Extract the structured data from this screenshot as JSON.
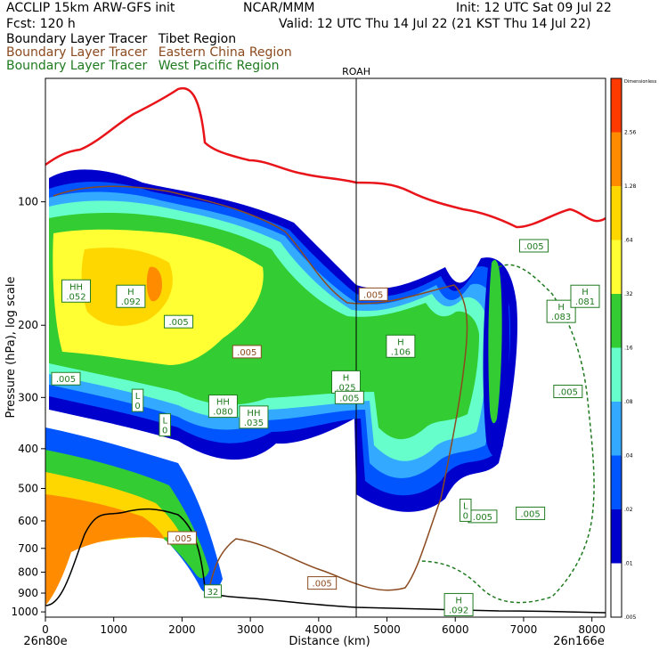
{
  "header": {
    "model": "ACCLIP 15km ARW-GFS init",
    "org": "NCAR/MMM",
    "init": "Init: 12 UTC Sat 09 Jul 22",
    "fcst": "Fcst:  120 h",
    "valid": "Valid: 12 UTC Thu 14 Jul 22 (21 KST Thu 14 Jul 22)"
  },
  "legend_lines": [
    {
      "label": "Boundary Layer Tracer",
      "region": "Tibet Region",
      "color": "#000000"
    },
    {
      "label": "Boundary Layer Tracer",
      "region": "Eastern China Region",
      "color": "#8b4a1f"
    },
    {
      "label": "Boundary Layer Tracer",
      "region": "West Pacific Region",
      "color": "#1f7a1f"
    }
  ],
  "chart_data": {
    "type": "cross-section",
    "xlabel": "Distance (km)",
    "ylabel": "Pressure (hPa), log scale",
    "xlim": [
      0,
      8200
    ],
    "ylim": [
      1030,
      50
    ],
    "y_scale": "log",
    "x_ticks": [
      "0",
      "1000",
      "2000",
      "3000",
      "4000",
      "5000",
      "6000",
      "7000",
      "8000"
    ],
    "y_ticks": [
      "100",
      "200",
      "300",
      "400",
      "500",
      "600",
      "700",
      "800",
      "900",
      "1000"
    ],
    "left_end_label": "26n80e",
    "right_end_label": "26n166e",
    "marker_label": "ROAH",
    "marker_x": 4550,
    "colorbar": {
      "title": "Dimensionless",
      "levels": [
        "2.56",
        "1.28",
        ".64",
        ".32",
        ".16",
        ".08",
        ".04",
        ".02",
        ".01",
        ".005"
      ],
      "colors": [
        "#ff3a00",
        "#ff8c00",
        "#ffd700",
        "#ffff33",
        "#33cc33",
        "#66ffcc",
        "#33aaff",
        "#0055ff",
        "#0000cc"
      ]
    },
    "contour_labels": [
      {
        "text": "H\n.092",
        "x": 1250,
        "p": 170,
        "color": "#1f7a1f"
      },
      {
        "text": ".005",
        "x": 1950,
        "p": 196,
        "color": "#1f7a1f"
      },
      {
        "text": ".005",
        "x": 300,
        "p": 270,
        "color": "#1f7a1f"
      },
      {
        "text": ".005",
        "x": 2950,
        "p": 232,
        "color": "#8b4a1f"
      },
      {
        "text": "L\n0",
        "x": 1350,
        "p": 305,
        "color": "#1f7a1f"
      },
      {
        "text": "HH\n.080",
        "x": 2600,
        "p": 315,
        "color": "#1f7a1f"
      },
      {
        "text": "HH\n.035",
        "x": 3050,
        "p": 335,
        "color": "#1f7a1f"
      },
      {
        "text": "L\n0",
        "x": 1750,
        "p": 350,
        "color": "#1f7a1f"
      },
      {
        "text": ".005",
        "x": 4800,
        "p": 168,
        "color": "#8b4a1f"
      },
      {
        "text": "H\n.106",
        "x": 5200,
        "p": 225,
        "color": "#1f7a1f"
      },
      {
        "text": "H\n.025",
        "x": 4400,
        "p": 275,
        "color": "#1f7a1f"
      },
      {
        "text": ".005",
        "x": 4450,
        "p": 300,
        "color": "#1f7a1f"
      },
      {
        "text": ".005",
        "x": 7150,
        "p": 128,
        "color": "#1f7a1f"
      },
      {
        "text": "H\n.083",
        "x": 7550,
        "p": 185,
        "color": "#1f7a1f"
      },
      {
        "text": ".005",
        "x": 7650,
        "p": 290,
        "color": "#1f7a1f"
      },
      {
        "text": ".005",
        "x": 7100,
        "p": 575,
        "color": "#1f7a1f"
      },
      {
        "text": ".005",
        "x": 6400,
        "p": 585,
        "color": "#1f7a1f"
      },
      {
        "text": "L\n0",
        "x": 6150,
        "p": 565,
        "color": "#1f7a1f"
      },
      {
        "text": ".005",
        "x": 2000,
        "p": 660,
        "color": "#8b4a1f"
      },
      {
        "text": ".005",
        "x": 4050,
        "p": 850,
        "color": "#8b4a1f"
      },
      {
        "text": "H\n.092",
        "x": 6050,
        "p": 960,
        "color": "#1f7a1f"
      },
      {
        "text": "H\n.081",
        "x": 7900,
        "p": 170,
        "color": "#1f7a1f"
      },
      {
        "text": "HH\n.052",
        "x": 450,
        "p": 165,
        "color": "#1f7a1f"
      },
      {
        "text": "32",
        "x": 2450,
        "p": 890,
        "color": "#1f7a1f"
      }
    ]
  }
}
